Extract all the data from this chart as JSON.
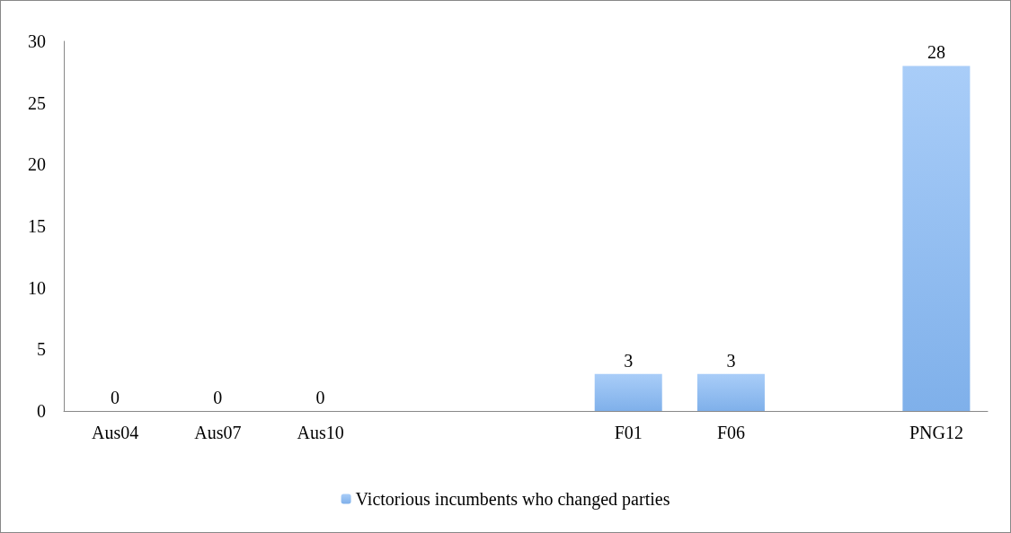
{
  "chart_data": {
    "type": "bar",
    "categories": [
      "Aus04",
      "Aus07",
      "Aus10",
      null,
      null,
      "F01",
      "F06",
      null,
      "PNG12"
    ],
    "series": [
      {
        "name": "Victorious incumbents who changed parties",
        "color": "#7fb0ea",
        "values": [
          0,
          0,
          0,
          null,
          null,
          3,
          3,
          null,
          28
        ]
      }
    ],
    "ylim": [
      0,
      30
    ],
    "yticks": [
      0,
      5,
      10,
      15,
      20,
      25,
      30
    ],
    "grid": false,
    "legend": "bottom",
    "data_labels": true
  }
}
